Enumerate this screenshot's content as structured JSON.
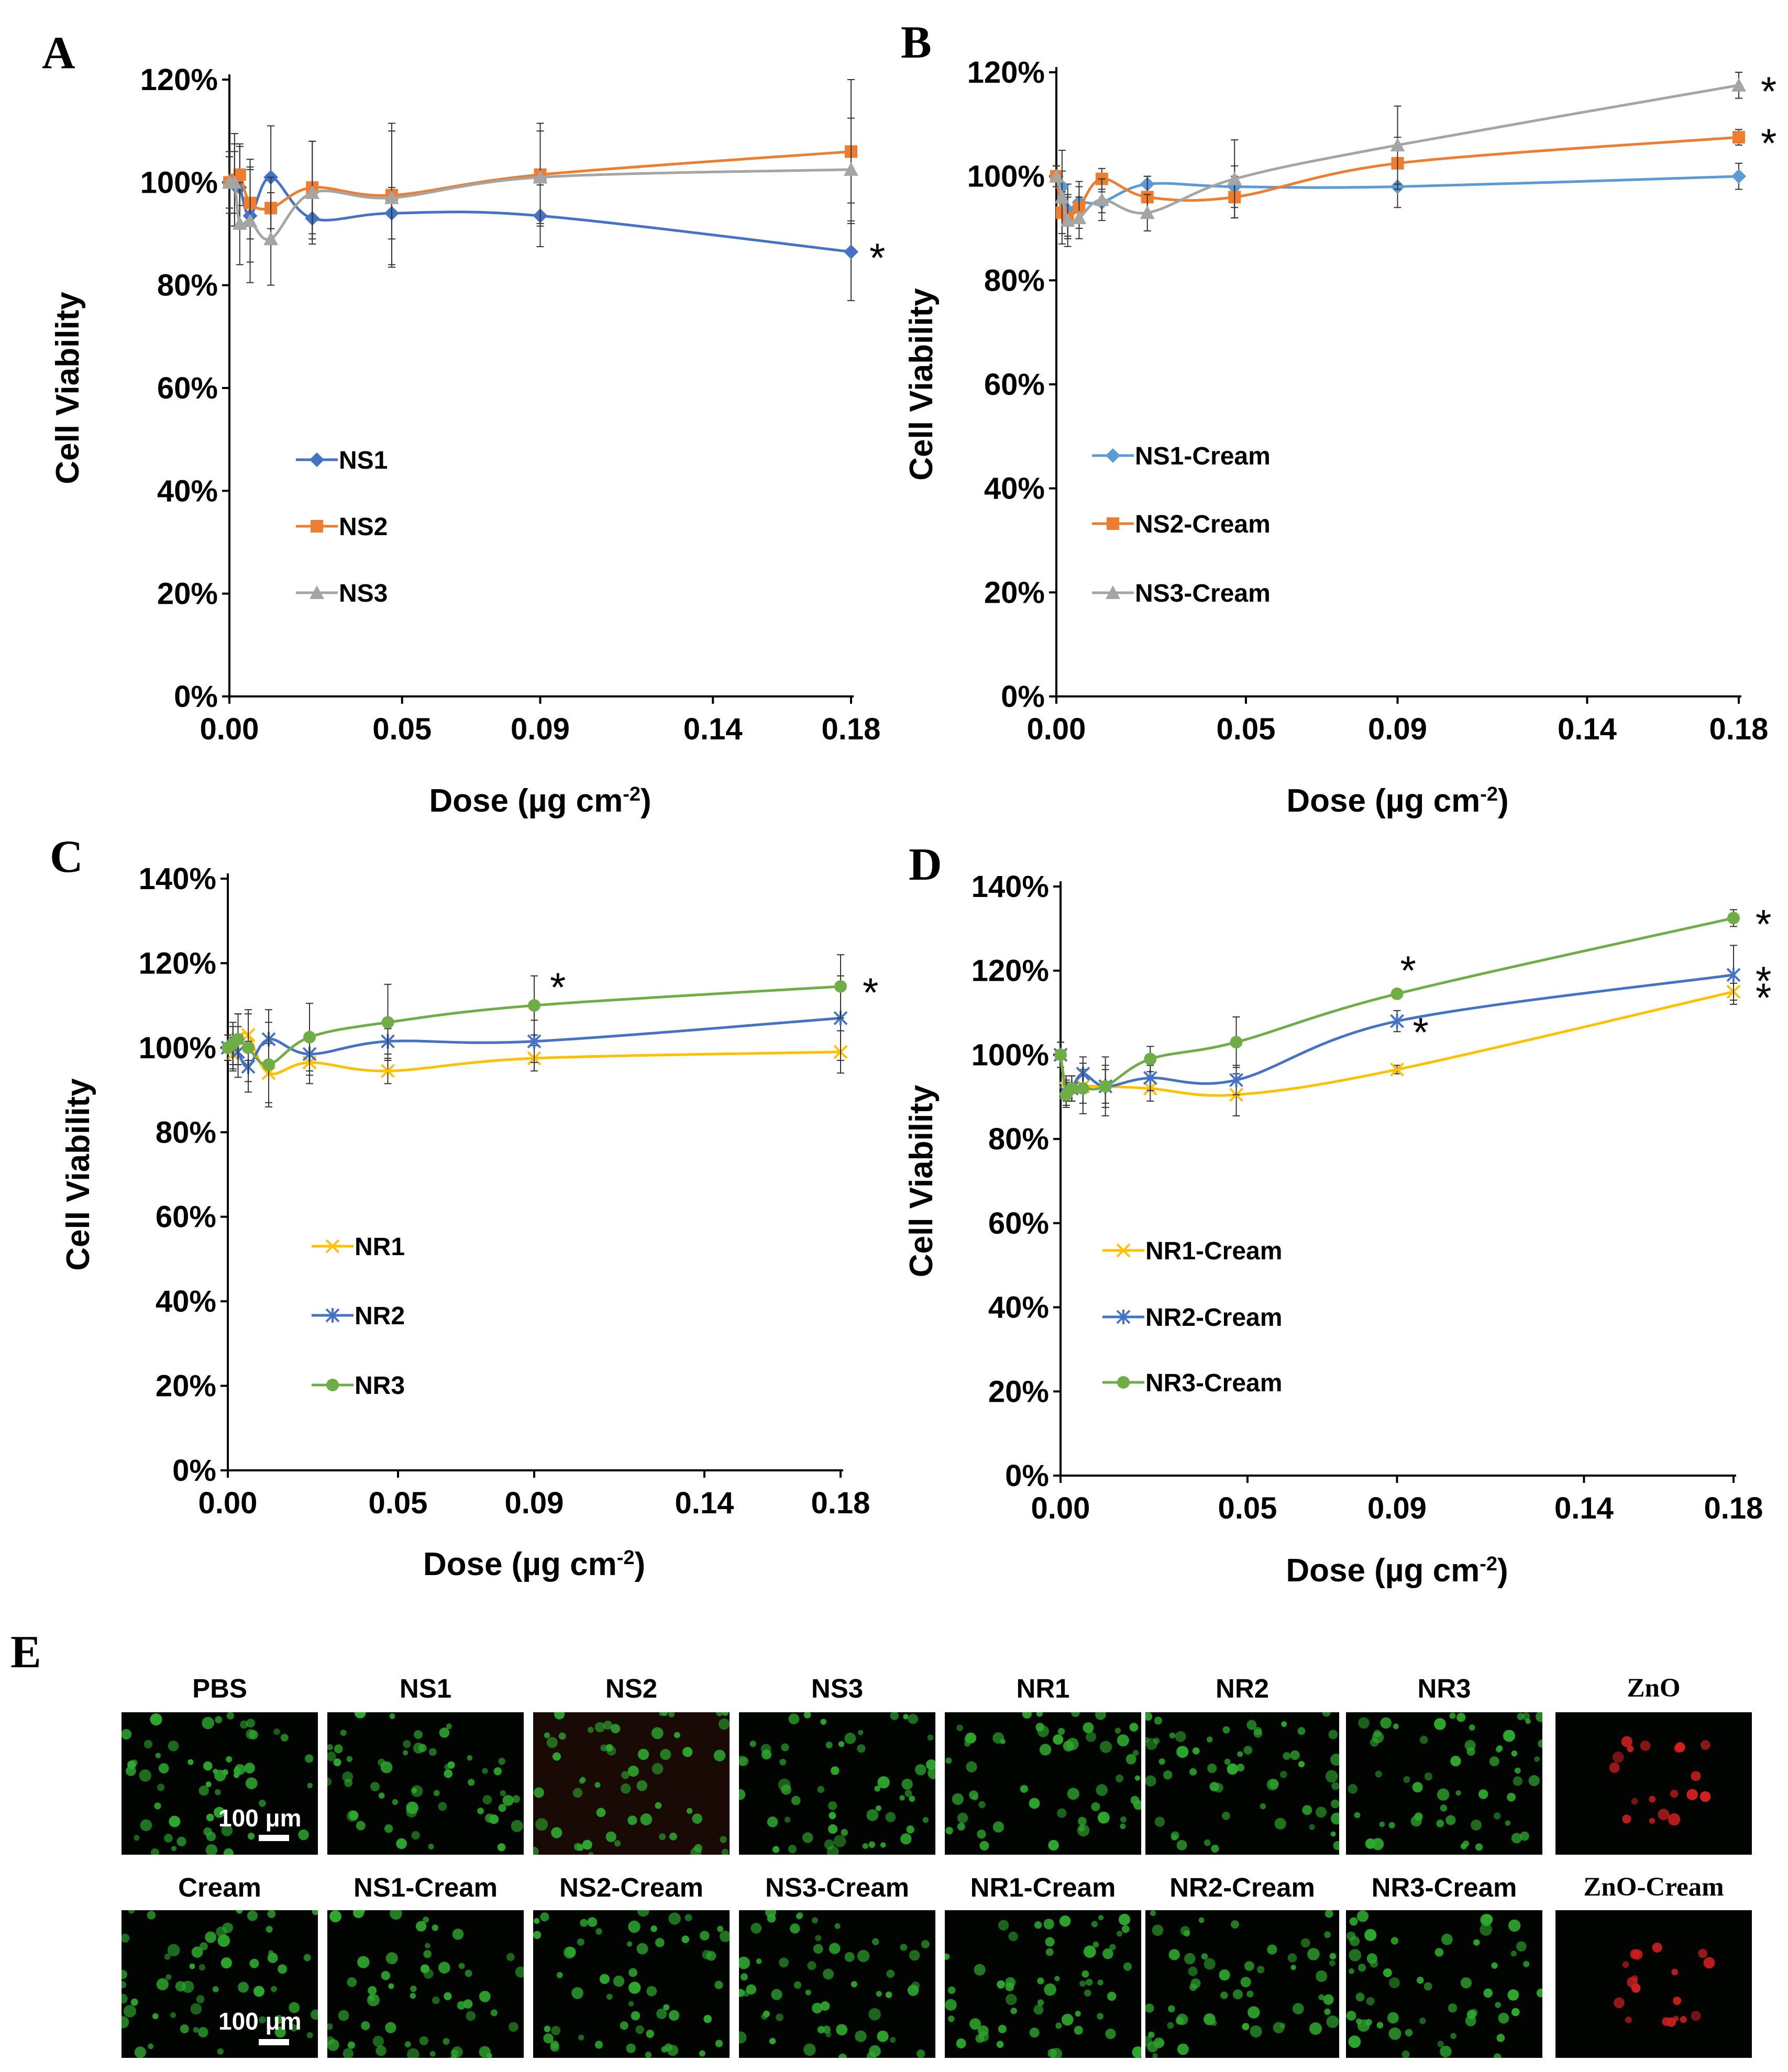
{
  "colors": {
    "ns1": "#4472C4",
    "ns2": "#ED7D31",
    "ns3": "#A5A5A5",
    "ns1cream": "#5B9BD5",
    "nr1": "#FFC000",
    "nr2": "#4472C4",
    "nr3": "#70AD47",
    "live": "#2ea82e",
    "dead": "#d02020"
  },
  "panel_E_label": "E",
  "chart_data": [
    {
      "panel": "A",
      "type": "line",
      "xlabel": "Dose (µg cm",
      "xlabel_sup": "-2",
      "xlabel_end": ")",
      "ylabel": "Cell Viability",
      "xlim": [
        0,
        0.18
      ],
      "ylim": [
        0,
        1.2
      ],
      "xticks": [
        0,
        0.05,
        0.09,
        0.14,
        0.18
      ],
      "xtick_labels": [
        "0.00",
        "0.05",
        "0.09",
        "0.14",
        "0.18"
      ],
      "yticks": [
        0,
        0.2,
        0.4,
        0.6,
        0.8,
        1.0,
        1.2
      ],
      "ytick_labels": [
        "0%",
        "20%",
        "40%",
        "60%",
        "80%",
        "100%",
        "120%"
      ],
      "x": [
        0,
        0.0015,
        0.003,
        0.006,
        0.012,
        0.024,
        0.047,
        0.09,
        0.18
      ],
      "series": [
        {
          "name": "NS1",
          "color": "#4472C4",
          "marker": "diamond",
          "values": [
            1.0,
            0.995,
            0.99,
            0.935,
            1.01,
            0.93,
            0.94,
            0.935,
            0.865
          ],
          "err": [
            0.06,
            0.08,
            0.08,
            0.09,
            0.1,
            0.04,
            0.05,
            0.06,
            0.095
          ],
          "stars": [
            {
              "index": 8,
              "label": "*"
            }
          ]
        },
        {
          "name": "NS2",
          "color": "#ED7D31",
          "marker": "square",
          "values": [
            1.0,
            1.005,
            1.015,
            0.96,
            0.95,
            0.99,
            0.975,
            1.015,
            1.06
          ],
          "err": [
            0.05,
            0.09,
            0.06,
            0.07,
            0.06,
            0.09,
            0.14,
            0.1,
            0.14
          ],
          "stars": []
        },
        {
          "name": "NS3",
          "color": "#A5A5A5",
          "marker": "triangle",
          "values": [
            1.0,
            1.0,
            0.92,
            0.925,
            0.89,
            0.98,
            0.97,
            1.01,
            1.025
          ],
          "err": [
            0.05,
            0.06,
            0.08,
            0.12,
            0.09,
            0.1,
            0.13,
            0.09,
            0.1
          ],
          "stars": []
        }
      ]
    },
    {
      "panel": "B",
      "type": "line",
      "xlabel": "Dose (µg cm",
      "xlabel_sup": "-2",
      "xlabel_end": ")",
      "ylabel": "Cell Viability",
      "xlim": [
        0,
        0.18
      ],
      "ylim": [
        0,
        1.2
      ],
      "xticks": [
        0,
        0.05,
        0.09,
        0.14,
        0.18
      ],
      "xtick_labels": [
        "0.00",
        "0.05",
        "0.09",
        "0.14",
        "0.18"
      ],
      "yticks": [
        0,
        0.2,
        0.4,
        0.6,
        0.8,
        1.0,
        1.2
      ],
      "ytick_labels": [
        "0%",
        "20%",
        "40%",
        "60%",
        "80%",
        "100%",
        "120%"
      ],
      "x": [
        0,
        0.0015,
        0.003,
        0.006,
        0.012,
        0.024,
        0.047,
        0.09,
        0.18
      ],
      "series": [
        {
          "name": "NS1-Cream",
          "color": "#5B9BD5",
          "marker": "diamond",
          "values": [
            1.0,
            0.98,
            0.935,
            0.95,
            0.95,
            0.985,
            0.98,
            0.98,
            1.0
          ],
          "err": [
            0.02,
            0.03,
            0.05,
            0.04,
            0.02,
            0.015,
            0.04,
            0.04,
            0.025
          ],
          "stars": []
        },
        {
          "name": "NS2-Cream",
          "color": "#ED7D31",
          "marker": "square",
          "values": [
            1.0,
            0.93,
            0.92,
            0.94,
            0.995,
            0.96,
            0.96,
            1.025,
            1.075
          ],
          "err": [
            0.02,
            0.04,
            0.04,
            0.04,
            0.02,
            0.04,
            0.04,
            0.05,
            0.015
          ],
          "stars": [
            {
              "index": 8,
              "label": "*"
            }
          ]
        },
        {
          "name": "NS3-Cream",
          "color": "#A5A5A5",
          "marker": "triangle",
          "values": [
            1.0,
            0.96,
            0.915,
            0.92,
            0.955,
            0.93,
            0.995,
            1.06,
            1.175
          ],
          "err": [
            0.02,
            0.09,
            0.05,
            0.04,
            0.04,
            0.035,
            0.075,
            0.075,
            0.025
          ],
          "stars": [
            {
              "index": 8,
              "label": "*"
            }
          ]
        }
      ]
    },
    {
      "panel": "C",
      "type": "line",
      "xlabel": "Dose (µg cm",
      "xlabel_sup": "-2",
      "xlabel_end": ")",
      "ylabel": "Cell Viability",
      "xlim": [
        0,
        0.18
      ],
      "ylim": [
        0,
        1.4
      ],
      "xticks": [
        0,
        0.05,
        0.09,
        0.14,
        0.18
      ],
      "xtick_labels": [
        "0.00",
        "0.05",
        "0.09",
        "0.14",
        "0.18"
      ],
      "yticks": [
        0,
        0.2,
        0.4,
        0.6,
        0.8,
        1.0,
        1.2,
        1.4
      ],
      "ytick_labels": [
        "0%",
        "20%",
        "40%",
        "60%",
        "80%",
        "100%",
        "120%",
        "140%"
      ],
      "x": [
        0,
        0.0015,
        0.003,
        0.006,
        0.012,
        0.024,
        0.047,
        0.09,
        0.18
      ],
      "series": [
        {
          "name": "NR1",
          "color": "#FFC000",
          "marker": "x",
          "values": [
            1.0,
            0.985,
            1.02,
            1.03,
            0.94,
            0.965,
            0.945,
            0.975,
            0.99
          ],
          "err": [
            0.03,
            0.04,
            0.06,
            0.06,
            0.07,
            0.05,
            0.03,
            0.03,
            0.05
          ],
          "stars": []
        },
        {
          "name": "NR2",
          "color": "#4472C4",
          "marker": "asterisk",
          "values": [
            1.0,
            1.0,
            0.99,
            0.955,
            1.02,
            0.985,
            1.015,
            1.015,
            1.07
          ],
          "err": [
            0.03,
            0.05,
            0.06,
            0.06,
            0.07,
            0.05,
            0.03,
            0.05,
            0.1
          ],
          "stars": []
        },
        {
          "name": "NR3",
          "color": "#70AD47",
          "marker": "circle",
          "values": [
            1.0,
            1.01,
            1.02,
            1.0,
            0.96,
            1.025,
            1.06,
            1.1,
            1.145
          ],
          "err": [
            0.03,
            0.05,
            0.06,
            0.08,
            0.1,
            0.08,
            0.09,
            0.07,
            0.075
          ],
          "stars": [
            {
              "index": 7,
              "label": "*"
            },
            {
              "index": 8,
              "label": "*"
            }
          ]
        }
      ]
    },
    {
      "panel": "D",
      "type": "line",
      "xlabel": "Dose (µg cm",
      "xlabel_sup": "-2",
      "xlabel_end": ")",
      "ylabel": "Cell Viability",
      "xlim": [
        0,
        0.18
      ],
      "ylim": [
        0,
        1.4
      ],
      "xticks": [
        0,
        0.05,
        0.09,
        0.14,
        0.18
      ],
      "xtick_labels": [
        "0.00",
        "0.05",
        "0.09",
        "0.14",
        "0.18"
      ],
      "yticks": [
        0,
        0.2,
        0.4,
        0.6,
        0.8,
        1.0,
        1.2,
        1.4
      ],
      "ytick_labels": [
        "0%",
        "20%",
        "40%",
        "60%",
        "80%",
        "100%",
        "120%",
        "140%"
      ],
      "x": [
        0,
        0.0015,
        0.003,
        0.006,
        0.012,
        0.024,
        0.047,
        0.09,
        0.18
      ],
      "series": [
        {
          "name": "NR1-Cream",
          "color": "#FFC000",
          "marker": "x",
          "values": [
            1.0,
            0.92,
            0.92,
            0.925,
            0.925,
            0.92,
            0.905,
            0.965,
            1.15
          ],
          "err": [
            0.03,
            0.03,
            0.03,
            0.04,
            0.05,
            0.03,
            0.05,
            0.01,
            0.02
          ],
          "stars": [
            {
              "index": 8,
              "label": "*"
            }
          ]
        },
        {
          "name": "NR2-Cream",
          "color": "#4472C4",
          "marker": "asterisk",
          "values": [
            1.0,
            0.91,
            0.92,
            0.955,
            0.925,
            0.945,
            0.94,
            1.08,
            1.19
          ],
          "err": [
            0.03,
            0.03,
            0.03,
            0.04,
            0.04,
            0.03,
            0.035,
            0.025,
            0.07
          ],
          "stars": [
            {
              "index": 7,
              "label": "*"
            },
            {
              "index": 8,
              "label": "*"
            }
          ]
        },
        {
          "name": "NR3-Cream",
          "color": "#70AD47",
          "marker": "circle",
          "values": [
            1.0,
            0.905,
            0.92,
            0.92,
            0.925,
            0.99,
            1.03,
            1.145,
            1.325
          ],
          "err": [
            0.03,
            0.03,
            0.03,
            0.06,
            0.07,
            0.03,
            0.06,
            0.01,
            0.02
          ],
          "stars": [
            {
              "index": 7,
              "label": "*"
            },
            {
              "index": 8,
              "label": "*"
            }
          ]
        }
      ]
    }
  ],
  "micrographs": {
    "scale_label": "100 μm",
    "row1": [
      {
        "label": "PBS",
        "stain": "live"
      },
      {
        "label": "NS1",
        "stain": "live"
      },
      {
        "label": "NS2",
        "stain": "live"
      },
      {
        "label": "NS3",
        "stain": "live"
      },
      {
        "label": "NR1",
        "stain": "live"
      },
      {
        "label": "NR2",
        "stain": "live"
      },
      {
        "label": "NR3",
        "stain": "live"
      },
      {
        "label": "ZnO",
        "stain": "dead"
      }
    ],
    "row2": [
      {
        "label": "Cream",
        "stain": "live"
      },
      {
        "label": "NS1-Cream",
        "stain": "live"
      },
      {
        "label": "NS2-Cream",
        "stain": "live"
      },
      {
        "label": "NS3-Cream",
        "stain": "live"
      },
      {
        "label": "NR1-Cream",
        "stain": "live"
      },
      {
        "label": "NR2-Cream",
        "stain": "live"
      },
      {
        "label": "NR3-Cream",
        "stain": "live"
      },
      {
        "label": "ZnO-Cream",
        "stain": "dead"
      }
    ]
  }
}
